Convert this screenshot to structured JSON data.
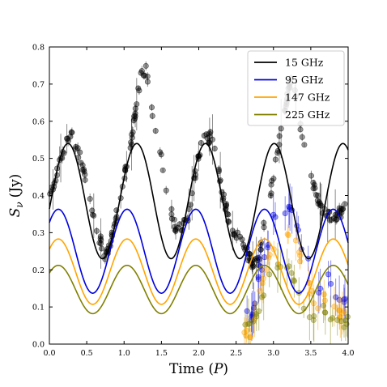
{
  "chart_data": {
    "type": "line",
    "title": "",
    "xlabel": "Time",
    "xlabel_unit": "P",
    "ylabel": "S",
    "ylabel_sub": "ν",
    "ylabel_unit": "(Jy)",
    "xlim": [
      0.0,
      4.0
    ],
    "ylim": [
      0.0,
      0.8
    ],
    "xticks": [
      0.0,
      0.5,
      1.0,
      1.5,
      2.0,
      2.5,
      3.0,
      3.5,
      4.0
    ],
    "xtick_labels": [
      "0.0",
      "0.5",
      "1.0",
      "1.5",
      "2.0",
      "2.5",
      "3.0",
      "3.5",
      "4.0"
    ],
    "yticks": [
      0.0,
      0.1,
      0.2,
      0.3,
      0.4,
      0.5,
      0.6,
      0.7,
      0.8
    ],
    "ytick_labels": [
      "0.0",
      "0.1",
      "0.2",
      "0.3",
      "0.4",
      "0.5",
      "0.6",
      "0.7",
      "0.8"
    ],
    "grid": false,
    "legend_position": "top-right",
    "series": [
      {
        "name": "15 GHz",
        "color": "#000000",
        "model": {
          "mean": 0.385,
          "amplitude": 0.155,
          "peak_phase": 0.25,
          "period": 0.92
        }
      },
      {
        "name": "95 GHz",
        "color": "#0000dd",
        "model": {
          "mean": 0.25,
          "amplitude": 0.113,
          "peak_phase": 0.12,
          "period": 0.92
        }
      },
      {
        "name": "147 GHz",
        "color": "#ffa500",
        "model": {
          "mean": 0.195,
          "amplitude": 0.088,
          "peak_phase": 0.12,
          "period": 0.92
        }
      },
      {
        "name": "225 GHz",
        "color": "#808000",
        "model": {
          "mean": 0.147,
          "amplitude": 0.065,
          "peak_phase": 0.12,
          "period": 0.92
        }
      }
    ],
    "observations": [
      {
        "series": "15 GHz",
        "color": "#000000",
        "t_start": 0.0,
        "t_end": 4.0,
        "phases": [
          [
            0.0,
            0.4
          ],
          [
            0.28,
            0.57
          ],
          [
            0.45,
            0.48
          ],
          [
            0.6,
            0.33
          ],
          [
            0.75,
            0.24
          ],
          [
            0.82,
            0.27
          ],
          [
            0.95,
            0.4
          ],
          [
            1.1,
            0.55
          ],
          [
            1.22,
            0.72
          ],
          [
            1.3,
            0.74
          ],
          [
            1.4,
            0.6
          ],
          [
            1.5,
            0.5
          ],
          [
            1.6,
            0.38
          ],
          [
            1.7,
            0.3
          ],
          [
            1.85,
            0.34
          ],
          [
            1.95,
            0.45
          ],
          [
            2.05,
            0.55
          ],
          [
            2.2,
            0.56
          ],
          [
            2.3,
            0.42
          ],
          [
            2.45,
            0.3
          ],
          [
            2.6,
            0.27
          ],
          [
            2.7,
            0.22
          ],
          [
            2.8,
            0.22
          ],
          [
            2.9,
            0.35
          ],
          [
            3.0,
            0.45
          ],
          [
            3.1,
            0.58
          ],
          [
            3.25,
            0.73
          ],
          [
            3.35,
            0.6
          ],
          [
            3.5,
            0.45
          ],
          [
            3.65,
            0.36
          ],
          [
            3.8,
            0.34
          ],
          [
            4.0,
            0.37
          ]
        ]
      },
      {
        "series": "95 GHz",
        "color": "#0000dd",
        "t_start": 2.6,
        "t_end": 4.0,
        "phases": [
          [
            2.6,
            0.09
          ],
          [
            2.7,
            0.06
          ],
          [
            2.8,
            0.18
          ],
          [
            2.9,
            0.25
          ],
          [
            3.0,
            0.34
          ],
          [
            3.1,
            0.35
          ],
          [
            3.2,
            0.38
          ],
          [
            3.3,
            0.32
          ],
          [
            3.4,
            0.25
          ],
          [
            3.5,
            0.2
          ],
          [
            3.6,
            0.14
          ],
          [
            3.7,
            0.2
          ],
          [
            3.8,
            0.15
          ],
          [
            3.9,
            0.12
          ],
          [
            4.0,
            0.1
          ]
        ]
      },
      {
        "series": "147 GHz",
        "color": "#ffa500",
        "t_start": 2.6,
        "t_end": 4.0,
        "phases": [
          [
            2.6,
            0.04
          ],
          [
            2.7,
            0.03
          ],
          [
            2.8,
            0.13
          ],
          [
            2.9,
            0.2
          ],
          [
            3.0,
            0.26
          ],
          [
            3.1,
            0.27
          ],
          [
            3.2,
            0.29
          ],
          [
            3.3,
            0.28
          ],
          [
            3.4,
            0.2
          ],
          [
            3.5,
            0.14
          ],
          [
            3.6,
            0.1
          ],
          [
            3.7,
            0.13
          ],
          [
            3.8,
            0.09
          ],
          [
            3.9,
            0.08
          ],
          [
            4.0,
            0.07
          ]
        ]
      },
      {
        "series": "225 GHz",
        "color": "#808000",
        "t_start": 2.6,
        "t_end": 4.0,
        "phases": [
          [
            2.6,
            0.05
          ],
          [
            2.7,
            0.04
          ],
          [
            2.8,
            0.1
          ],
          [
            2.9,
            0.16
          ],
          [
            3.0,
            0.2
          ],
          [
            3.1,
            0.22
          ],
          [
            3.2,
            0.21
          ],
          [
            3.3,
            0.17
          ],
          [
            3.4,
            0.1
          ],
          [
            3.5,
            0.08
          ],
          [
            3.6,
            0.07
          ],
          [
            3.7,
            0.1
          ],
          [
            3.8,
            0.06
          ],
          [
            3.9,
            0.05
          ],
          [
            4.0,
            0.06
          ]
        ]
      }
    ]
  }
}
